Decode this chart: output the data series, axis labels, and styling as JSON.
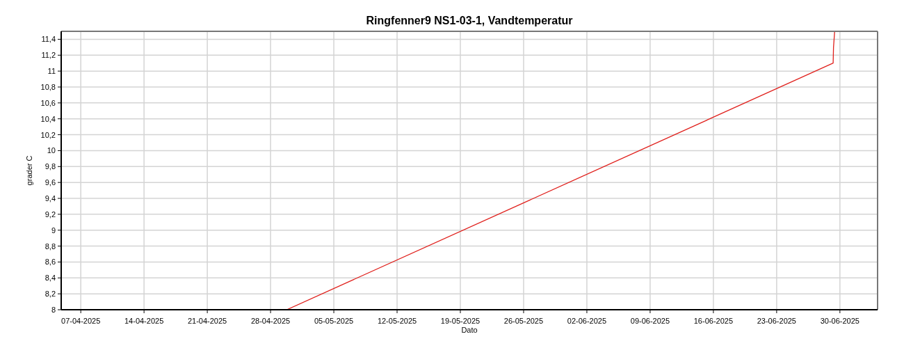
{
  "chart_data": {
    "type": "line",
    "title": "Ringfenner9 NS1-03-1, Vandtemperatur",
    "xlabel": "Dato",
    "ylabel": "grader C",
    "x": [
      "2025-04-29T19:00",
      "2025-06-29T06:00",
      "2025-06-29T07:00",
      "2025-06-29T10:00"
    ],
    "series": [
      {
        "color": "#e0201c",
        "values": [
          8,
          11.1,
          11.3,
          11.5
        ]
      }
    ],
    "xlim": [
      "2025-04-04T20:00",
      "2025-07-04T04:00"
    ],
    "xticks": [
      {
        "value": "2025-04-07",
        "label": "07-04-2025"
      },
      {
        "value": "2025-04-14",
        "label": "14-04-2025"
      },
      {
        "value": "2025-04-21",
        "label": "21-04-2025"
      },
      {
        "value": "2025-04-28",
        "label": "28-04-2025"
      },
      {
        "value": "2025-05-05",
        "label": "05-05-2025"
      },
      {
        "value": "2025-05-12",
        "label": "12-05-2025"
      },
      {
        "value": "2025-05-19",
        "label": "19-05-2025"
      },
      {
        "value": "2025-05-26",
        "label": "26-05-2025"
      },
      {
        "value": "2025-06-02",
        "label": "02-06-2025"
      },
      {
        "value": "2025-06-09",
        "label": "09-06-2025"
      },
      {
        "value": "2025-06-16",
        "label": "16-06-2025"
      },
      {
        "value": "2025-06-23",
        "label": "23-06-2025"
      },
      {
        "value": "2025-06-30",
        "label": "30-06-2025"
      }
    ],
    "ylim": [
      8,
      11.5
    ],
    "yticks": [
      8,
      {
        "value": 8.2,
        "label": "8,2"
      },
      {
        "value": 8.4,
        "label": "8,4"
      },
      {
        "value": 8.6,
        "label": "8,6"
      },
      {
        "value": 8.8,
        "label": "8,8"
      },
      9,
      {
        "value": 9.2,
        "label": "9,2"
      },
      {
        "value": 9.4,
        "label": "9,4"
      },
      {
        "value": 9.6,
        "label": "9,6"
      },
      {
        "value": 9.8,
        "label": "9,8"
      },
      10,
      {
        "value": 10.2,
        "label": "10,2"
      },
      {
        "value": 10.4,
        "label": "10,4"
      },
      {
        "value": 10.6,
        "label": "10,6"
      },
      {
        "value": 10.8,
        "label": "10,8"
      },
      11,
      {
        "value": 11.2,
        "label": "11,2"
      },
      {
        "value": 11.4,
        "label": "11,4"
      }
    ],
    "grid": true,
    "marker": "none",
    "line_style": "solid"
  }
}
